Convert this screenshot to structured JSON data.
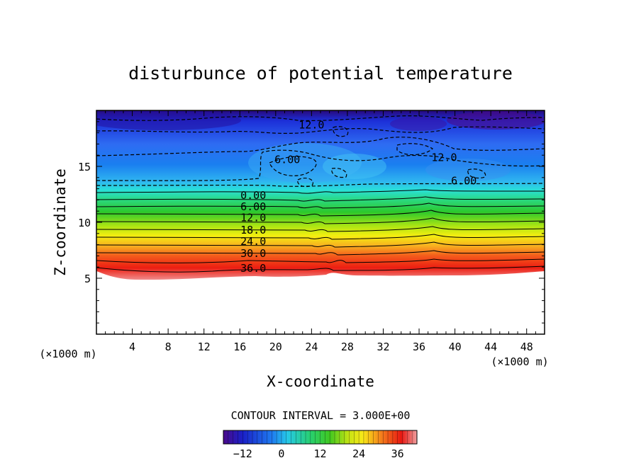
{
  "chart_data": {
    "type": "heatmap",
    "title": "disturbunce of potential temperature",
    "xlabel": "X-coordinate",
    "ylabel": "Z-coordinate",
    "x_unit": "(×1000 m)",
    "y_unit": "(×1000 m)",
    "xlim": [
      0,
      50
    ],
    "ylim": [
      0,
      20
    ],
    "xticks": [
      4,
      8,
      12,
      16,
      20,
      24,
      28,
      32,
      36,
      40,
      44,
      48
    ],
    "yticks": [
      5,
      10,
      15
    ],
    "color_range": [
      -18,
      42
    ],
    "contour_interval_text": "CONTOUR INTERVAL = 3.000E+00",
    "contour_labels": [
      {
        "text": "12.0",
        "x": 24.0,
        "z": 18.7
      },
      {
        "text": "6.00",
        "x": 21.3,
        "z": 15.6
      },
      {
        "text": "12.0",
        "x": 38.8,
        "z": 15.8
      },
      {
        "text": "6.00",
        "x": 41.0,
        "z": 13.7
      },
      {
        "text": "0.00",
        "x": 17.5,
        "z": 12.4
      },
      {
        "text": "6.00",
        "x": 17.5,
        "z": 11.4
      },
      {
        "text": "12.0",
        "x": 17.5,
        "z": 10.4
      },
      {
        "text": "18.0",
        "x": 17.5,
        "z": 9.3
      },
      {
        "text": "24.0",
        "x": 17.5,
        "z": 8.3
      },
      {
        "text": "30.0",
        "x": 17.5,
        "z": 7.2
      },
      {
        "text": "36.0",
        "x": 17.5,
        "z": 5.9
      }
    ],
    "colorbar": {
      "ticks": [
        -12,
        0,
        12,
        24,
        36
      ],
      "tick_labels": [
        "−12",
        "0",
        "12",
        "24",
        "36"
      ]
    }
  }
}
